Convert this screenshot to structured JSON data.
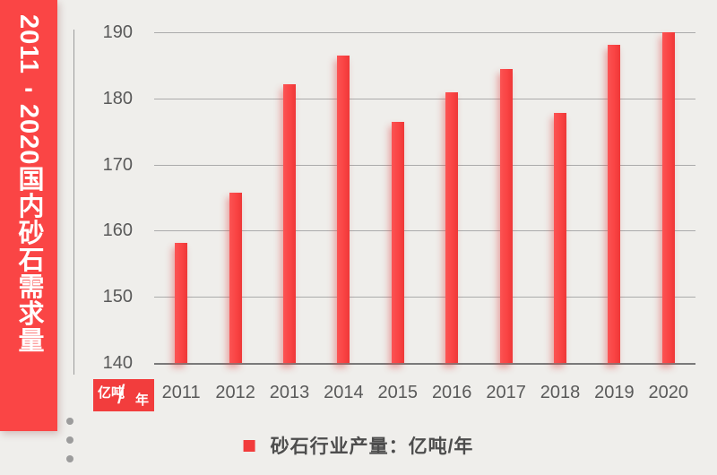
{
  "banner": {
    "title_start": "2011",
    "title_dash": "-",
    "title_end": "2020国内砂石需求量",
    "full_title": "2011-2020国内砂石需求量",
    "bg_color": "#fa4545",
    "text_color": "#ffffff"
  },
  "chart_data": {
    "type": "bar",
    "title": "2011-2020国内砂石需求量",
    "categories": [
      "2011",
      "2012",
      "2013",
      "2014",
      "2015",
      "2016",
      "2017",
      "2018",
      "2019",
      "2020"
    ],
    "values": [
      158.2,
      165.8,
      182.2,
      186.5,
      176.4,
      180.9,
      184.5,
      177.8,
      188.1,
      190
    ],
    "series_name": "砂石行业产量：亿吨/年",
    "xlabel": "",
    "ylabel": "亿吨/年",
    "ylim": [
      140,
      190
    ],
    "yticks": [
      190,
      180,
      170,
      160,
      150,
      140
    ],
    "grid": true,
    "legend_position": "bottom",
    "bar_color": "#fa4343"
  },
  "unit_label": {
    "top": "亿吨",
    "slash": "/",
    "bottom": "年",
    "bg_color": "#f23d3d"
  },
  "legend": {
    "label": "砂石行业产量：亿吨/年",
    "swatch_color": "#f23b3b"
  },
  "colors": {
    "background": "#efeeeb",
    "grid_line": "#ababab",
    "axis_line": "#7a7a7a",
    "tick_text": "#595959",
    "legend_text": "#4d4d4d",
    "decor": "#9b9b9b"
  }
}
